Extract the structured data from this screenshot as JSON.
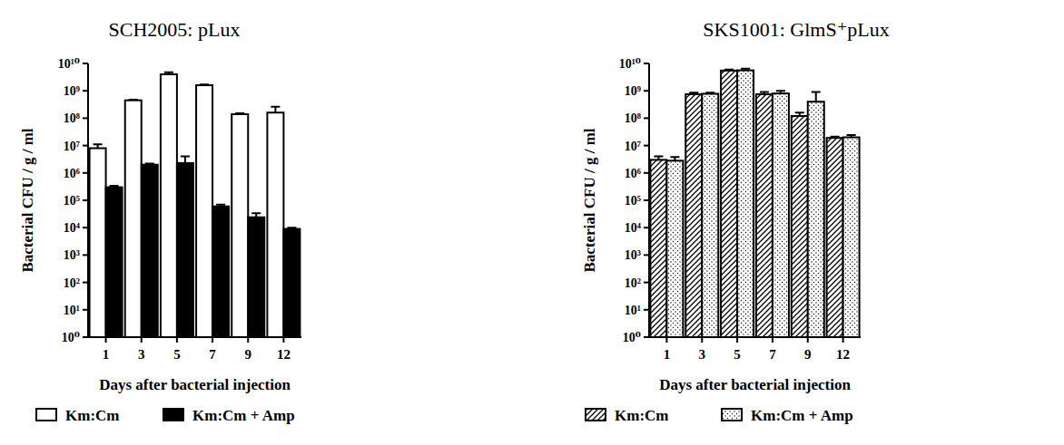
{
  "chart_data": [
    {
      "type": "bar",
      "title": "SCH2005: pLux",
      "x_label": "Days after bacterial injection",
      "y_label": "Bacterial CFU / g / ml",
      "categories": [
        "1",
        "3",
        "5",
        "7",
        "9",
        "12"
      ],
      "series": [
        {
          "name": "Km:Cm",
          "color": "#ffffff",
          "values": [
            8000000,
            450000000,
            4000000000,
            1600000000,
            140000000,
            160000000
          ],
          "errors": [
            3000000,
            20000000,
            800000000,
            100000000,
            10000000,
            100000000
          ]
        },
        {
          "name": "Km:Cm + Amp",
          "color": "#000000",
          "values": [
            300000,
            2000000,
            2300000,
            60000,
            24000,
            9000
          ],
          "errors": [
            40000,
            200000,
            1700000,
            10000,
            10000,
            1000
          ]
        }
      ],
      "log": "y",
      "ylim": [
        1,
        10000000000
      ],
      "yticks": [
        {
          "value": 1,
          "label": "10⁰"
        },
        {
          "value": 10,
          "label": "10¹"
        },
        {
          "value": 100,
          "label": "10²"
        },
        {
          "value": 1000,
          "label": "10³"
        },
        {
          "value": 10000,
          "label": "10⁴"
        },
        {
          "value": 100000,
          "label": "10⁵"
        },
        {
          "value": 1000000,
          "label": "10⁶"
        },
        {
          "value": 10000000,
          "label": "10⁷"
        },
        {
          "value": 100000000,
          "label": "10⁸"
        },
        {
          "value": 1000000000,
          "label": "10⁹"
        },
        {
          "value": 10000000000,
          "label": "10¹⁰"
        }
      ],
      "legend": "bottom",
      "grid": false
    },
    {
      "type": "bar",
      "title": "SKS1001: GlmS⁺pLux",
      "x_label": "Days after bacterial injection",
      "y_label": "Bacterial CFU / g / ml",
      "categories": [
        "1",
        "3",
        "5",
        "7",
        "9",
        "12"
      ],
      "series": [
        {
          "name": "Km:Cm",
          "color": "#ffffff",
          "values": [
            3000000,
            750000000,
            5500000000,
            750000000,
            120000000,
            19000000
          ],
          "errors": [
            1000000,
            100000000,
            500000000,
            150000000,
            40000000,
            2000000
          ]
        },
        {
          "name": "Km:Cm + Amp",
          "color": "#ffffff",
          "values": [
            2800000,
            780000000,
            5600000000,
            800000000,
            400000000,
            20000000
          ],
          "errors": [
            1000000,
            70000000,
            900000000,
            200000000,
            500000000,
            4000000
          ]
        }
      ],
      "log": "y",
      "ylim": [
        1,
        10000000000
      ],
      "yticks": [
        {
          "value": 1,
          "label": "10⁰"
        },
        {
          "value": 10,
          "label": "10¹"
        },
        {
          "value": 100,
          "label": "10²"
        },
        {
          "value": 1000,
          "label": "10³"
        },
        {
          "value": 10000,
          "label": "10⁴"
        },
        {
          "value": 100000,
          "label": "10⁵"
        },
        {
          "value": 1000000,
          "label": "10⁶"
        },
        {
          "value": 10000000,
          "label": "10⁷"
        },
        {
          "value": 100000000,
          "label": "10⁸"
        },
        {
          "value": 1000000000,
          "label": "10⁹"
        },
        {
          "value": 10000000000,
          "label": "10¹⁰"
        }
      ],
      "legend": "bottom",
      "grid": false
    }
  ]
}
